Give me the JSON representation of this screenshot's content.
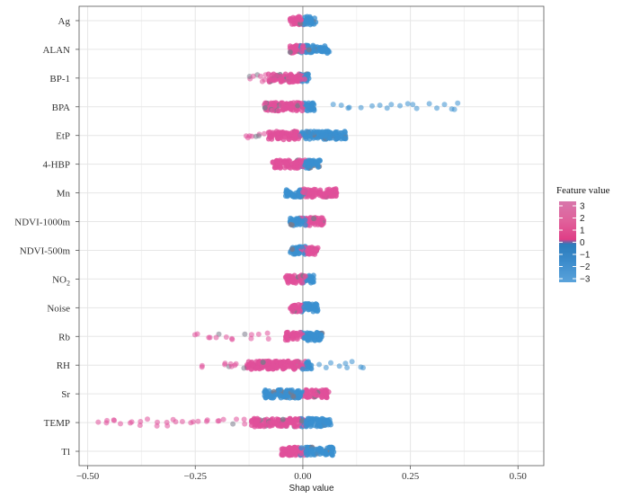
{
  "chart_data": {
    "type": "scatter",
    "subtype": "shap-beeswarm",
    "title": "",
    "xlabel": "Shap value",
    "ylabel": "",
    "xlim": [
      -0.52,
      0.56
    ],
    "xticks": [
      -0.5,
      -0.25,
      0.0,
      0.25,
      0.5
    ],
    "xtick_labels": [
      "−0.50",
      "−0.25",
      "0.00",
      "0.25",
      "0.50"
    ],
    "grid": true,
    "legend": {
      "title": "Feature value",
      "placement": "right",
      "ticks": [
        3,
        2,
        1,
        0,
        -1,
        -2,
        -3
      ],
      "tick_labels": [
        "3",
        "2",
        "1",
        "0",
        "−1",
        "−2",
        "−3"
      ],
      "colors": [
        "#d46fa2",
        "#e0609a",
        "#e2478b",
        "#df3e86",
        "#2f7fbf",
        "#3c8ccc",
        "#4f9ad6"
      ]
    },
    "colors": {
      "high": "#e0509a",
      "low": "#3a8fd0",
      "mid": "#7a7a8a"
    },
    "features": [
      {
        "name": "Ag",
        "label": "Ag",
        "range": [
          -0.03,
          0.03
        ],
        "neg_color": "high",
        "tail_neg": [],
        "tail_pos": []
      },
      {
        "name": "ALAN",
        "label": "ALAN",
        "range": [
          -0.03,
          0.06
        ],
        "neg_color": "high",
        "tail_neg": [],
        "tail_pos": [
          0.06
        ]
      },
      {
        "name": "BP-1",
        "label": "BP-1",
        "range": [
          -0.08,
          0.02
        ],
        "neg_color": "high",
        "tail_neg": [
          -0.12,
          -0.11,
          -0.1,
          -0.09
        ],
        "tail_pos": []
      },
      {
        "name": "BPA",
        "label": "BPA",
        "range": [
          -0.09,
          0.03
        ],
        "neg_color": "high",
        "tail_neg": [],
        "tail_pos": [
          0.07,
          0.09,
          0.11,
          0.14,
          0.16,
          0.18,
          0.2,
          0.22,
          0.24,
          0.25,
          0.26,
          0.29,
          0.31,
          0.33,
          0.35,
          0.36
        ]
      },
      {
        "name": "EtP",
        "label": "EtP",
        "range": [
          -0.08,
          0.1
        ],
        "neg_color": "high",
        "tail_neg": [
          -0.13,
          -0.12,
          -0.11,
          -0.1,
          -0.09
        ],
        "tail_pos": []
      },
      {
        "name": "4-HBP",
        "label": "4-HBP",
        "range": [
          -0.07,
          0.04
        ],
        "neg_color": "high",
        "tail_neg": [],
        "tail_pos": []
      },
      {
        "name": "Mn",
        "label": "Mn",
        "range": [
          -0.04,
          0.08
        ],
        "neg_color": "low",
        "tail_neg": [],
        "tail_pos": []
      },
      {
        "name": "NDVI-1000m",
        "label": "NDVI-1000m",
        "range": [
          -0.03,
          0.05
        ],
        "neg_color": "low",
        "tail_neg": [],
        "tail_pos": []
      },
      {
        "name": "NDVI-500m",
        "label": "NDVI-500m",
        "range": [
          -0.03,
          0.035
        ],
        "neg_color": "low",
        "tail_neg": [],
        "tail_pos": []
      },
      {
        "name": "NO2",
        "label": "NO",
        "label_sub": "2",
        "range": [
          -0.04,
          0.025
        ],
        "neg_color": "high",
        "tail_neg": [],
        "tail_pos": []
      },
      {
        "name": "Noise",
        "label": "Noise",
        "range": [
          -0.03,
          0.035
        ],
        "neg_color": "high",
        "tail_neg": [],
        "tail_pos": []
      },
      {
        "name": "Rb",
        "label": "Rb",
        "range": [
          -0.04,
          0.045
        ],
        "neg_color": "high",
        "tail_neg": [
          -0.25,
          -0.24,
          -0.22,
          -0.2,
          -0.18,
          -0.16,
          -0.14,
          -0.12,
          -0.1,
          -0.08
        ],
        "tail_pos": []
      },
      {
        "name": "RH",
        "label": "RH",
        "range": [
          -0.13,
          0.02
        ],
        "neg_color": "high",
        "tail_neg": [
          -0.23,
          -0.18,
          -0.17,
          -0.16,
          -0.15,
          -0.14
        ],
        "tail_pos": [
          0.04,
          0.06,
          0.08,
          0.1,
          0.12,
          0.14
        ]
      },
      {
        "name": "Sr",
        "label": "Sr",
        "range": [
          -0.09,
          0.06
        ],
        "neg_color": "low",
        "tail_neg": [],
        "tail_pos": []
      },
      {
        "name": "TEMP",
        "label": "TEMP",
        "range": [
          -0.12,
          0.065
        ],
        "neg_color": "high",
        "tail_neg": [
          -0.48,
          -0.46,
          -0.44,
          -0.42,
          -0.4,
          -0.38,
          -0.36,
          -0.34,
          -0.32,
          -0.3,
          -0.28,
          -0.26,
          -0.24,
          -0.22,
          -0.2,
          -0.18,
          -0.16,
          -0.14
        ],
        "tail_pos": []
      },
      {
        "name": "Tl",
        "label": "Tl",
        "range": [
          -0.05,
          0.075
        ],
        "neg_color": "high",
        "tail_neg": [],
        "tail_pos": []
      }
    ]
  }
}
